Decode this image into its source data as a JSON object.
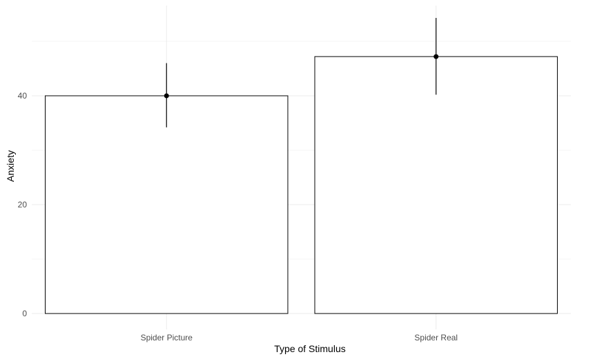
{
  "chart_data": {
    "type": "bar",
    "categories": [
      "Spider Picture",
      "Spider Real"
    ],
    "values": [
      40,
      47.2
    ],
    "error_bars": [
      {
        "lower": 34.2,
        "upper": 46.0
      },
      {
        "lower": 40.2,
        "upper": 54.3
      }
    ],
    "title": "",
    "xlabel": "Type of Stimulus",
    "ylabel": "Anxiety",
    "ylim": [
      0,
      56
    ],
    "yticks": [
      0,
      20,
      40
    ],
    "grid": true,
    "colors": {
      "bar_fill": "#ffffff",
      "bar_stroke": "#000000",
      "grid_major": "#ebebeb",
      "grid_minor": "#f4f4f4",
      "tick_text": "#4d4d4d",
      "point": "#000000"
    }
  }
}
